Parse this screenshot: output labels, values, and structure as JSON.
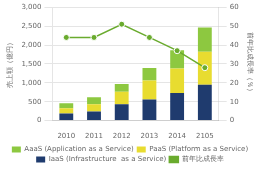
{
  "chart_data": {
    "type": "bar",
    "stacked": true,
    "categories": [
      "2010",
      "2011",
      "2012",
      "2013",
      "2014",
      "2105"
    ],
    "series": [
      {
        "name": "IaaS (Infrastructure  as a Service)",
        "color": "#1F3B6E",
        "values": [
          190,
          240,
          430,
          560,
          730,
          950
        ]
      },
      {
        "name": "PaaS (Platform as a Service)",
        "color": "#E8DC30",
        "values": [
          140,
          190,
          330,
          500,
          650,
          870
        ]
      },
      {
        "name": "AaaS (Application as a Service)",
        "color": "#8DC840",
        "values": [
          130,
          190,
          210,
          330,
          480,
          640
        ]
      },
      {
        "name": "前年比成長率",
        "type": "line",
        "axis": "y2",
        "color": "#6AAB2E",
        "marker": "circle",
        "values": [
          44,
          44,
          51,
          44,
          37,
          28
        ]
      }
    ],
    "ylim": [
      0,
      3000
    ],
    "yticks": [
      0,
      500,
      {
        "value": 1000,
        "label": "1,000"
      },
      {
        "value": 1500,
        "label": "1,500"
      },
      {
        "value": 2000,
        "label": "2,000"
      },
      {
        "value": 2500,
        "label": "2,500"
      },
      {
        "value": 3000,
        "label": "3,000"
      }
    ],
    "y2lim": [
      0,
      60
    ],
    "y2ticks": [
      0,
      10,
      20,
      30,
      40,
      50,
      60
    ],
    "ylabel": "売上額（億円）",
    "y2label": "前年比成長率（％）",
    "grid": true,
    "legend": "bottom"
  }
}
